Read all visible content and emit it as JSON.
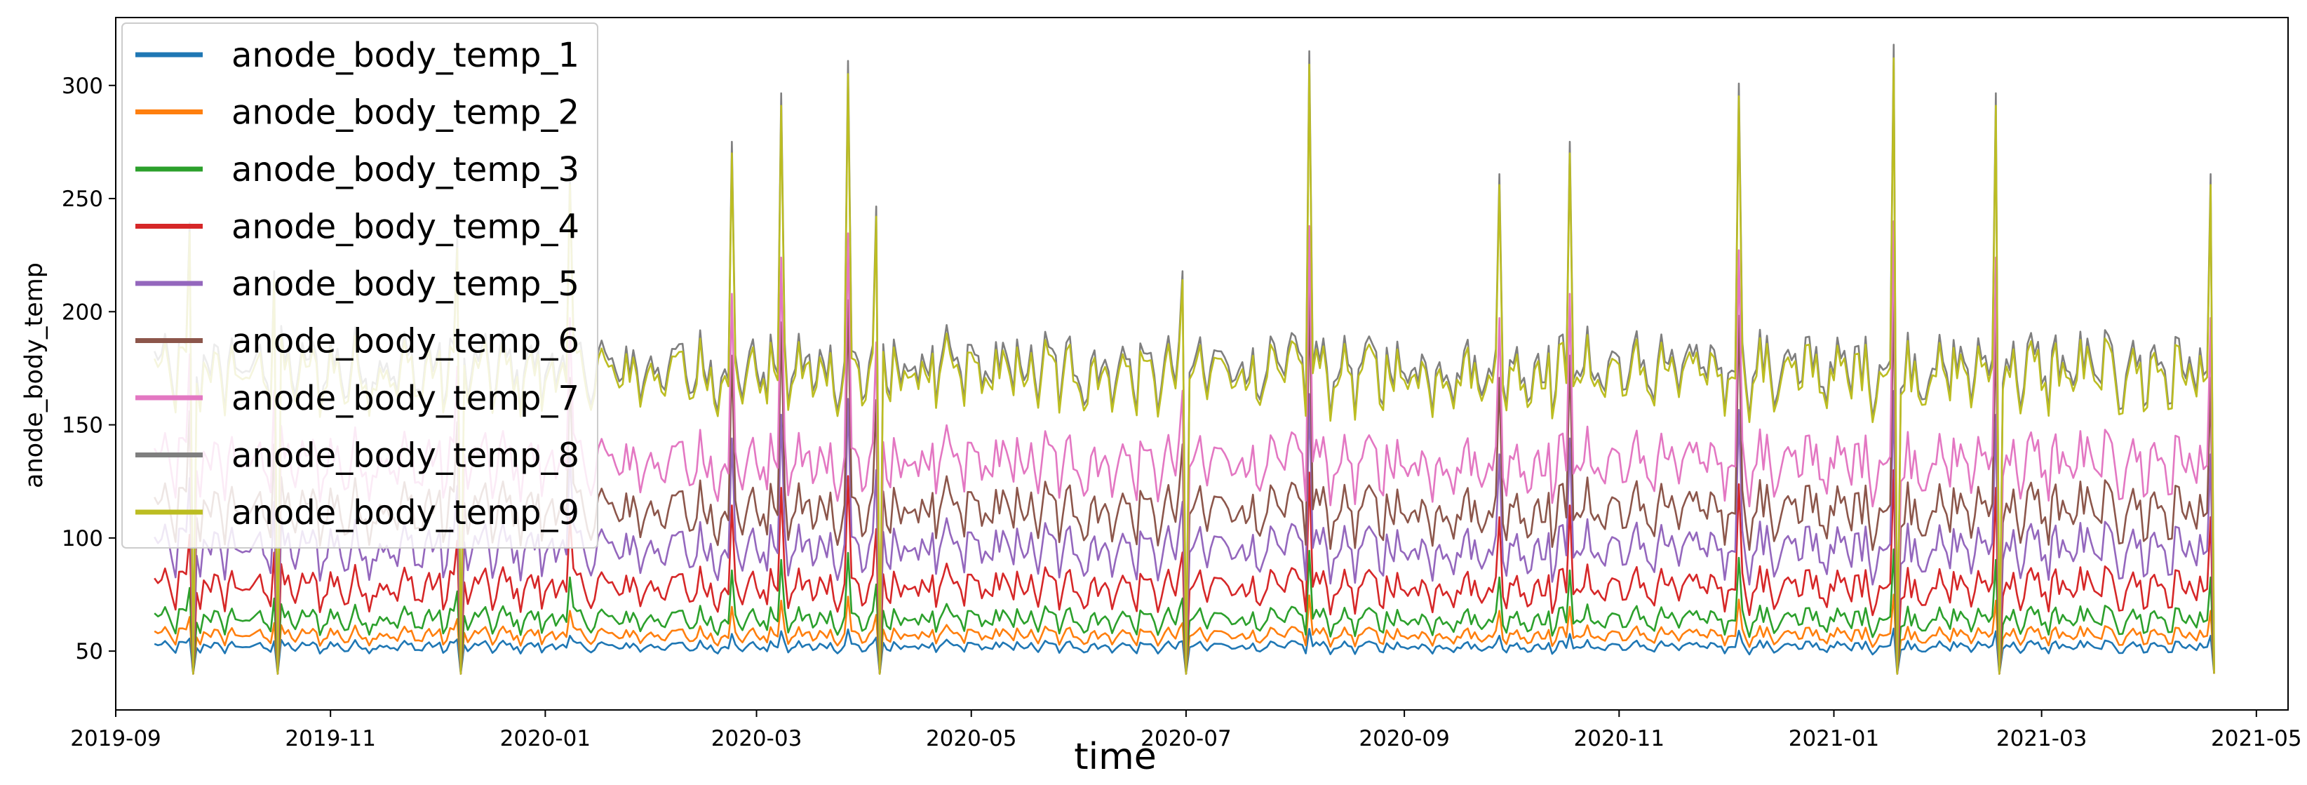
{
  "chart_data": {
    "type": "line",
    "title": "",
    "xlabel": "time",
    "ylabel": "anode_body_temp",
    "x_range": [
      "2019-09-01",
      "2021-05-10"
    ],
    "ylim": [
      24,
      330
    ],
    "y_ticks": [
      50,
      100,
      150,
      200,
      250,
      300
    ],
    "y_tick_labels": [
      "50",
      "100",
      "150",
      "200",
      "250",
      "300"
    ],
    "x_ticks": [
      "2019-09-01",
      "2019-11-01",
      "2020-01-01",
      "2020-03-01",
      "2020-05-01",
      "2020-07-01",
      "2020-09-01",
      "2020-11-01",
      "2021-01-01",
      "2021-03-01",
      "2021-05-01"
    ],
    "x_tick_labels": [
      "2019-09",
      "2019-11",
      "2020-01",
      "2020-03",
      "2020-05",
      "2020-07",
      "2020-09",
      "2020-11",
      "2021-01",
      "2021-03",
      "2021-05"
    ],
    "grid": false,
    "legend_position": "top-left",
    "series_start": "2019-09-12",
    "series_end": "2021-04-19",
    "series": [
      {
        "name": "anode_body_temp_1",
        "color": "#1f77b4",
        "baseline": 52,
        "variation": 4,
        "spike_peak": 60,
        "spike_low": 40
      },
      {
        "name": "anode_body_temp_2",
        "color": "#ff7f0e",
        "baseline": 57,
        "variation": 6,
        "spike_peak": 75,
        "spike_low": 40
      },
      {
        "name": "anode_body_temp_3",
        "color": "#2ca02c",
        "baseline": 64,
        "variation": 9,
        "spike_peak": 95,
        "spike_low": 40
      },
      {
        "name": "anode_body_temp_4",
        "color": "#d62728",
        "baseline": 78,
        "variation": 14,
        "spike_peak": 130,
        "spike_low": 40
      },
      {
        "name": "anode_body_temp_5",
        "color": "#9467bd",
        "baseline": 95,
        "variation": 18,
        "spike_peak": 165,
        "spike_low": 40
      },
      {
        "name": "anode_body_temp_6",
        "color": "#8c564b",
        "baseline": 112,
        "variation": 20,
        "spike_peak": 210,
        "spike_low": 40
      },
      {
        "name": "anode_body_temp_7",
        "color": "#e377c2",
        "baseline": 133,
        "variation": 22,
        "spike_peak": 240,
        "spike_low": 40
      },
      {
        "name": "anode_body_temp_8",
        "color": "#7f7f7f",
        "baseline": 175,
        "variation": 25,
        "spike_peak": 318,
        "spike_low": 42
      },
      {
        "name": "anode_body_temp_9",
        "color": "#bcbd22",
        "baseline": 172,
        "variation": 24,
        "spike_peak": 312,
        "spike_low": 40
      }
    ],
    "spike_events": [
      {
        "date": "2019-09-22",
        "high": 0.45,
        "low": true
      },
      {
        "date": "2019-10-16",
        "high": 0.3,
        "low": true
      },
      {
        "date": "2019-12-07",
        "high": 0.4,
        "low": true
      },
      {
        "date": "2020-01-08",
        "high": 0.6,
        "low": false
      },
      {
        "date": "2020-02-23",
        "high": 0.7,
        "low": false
      },
      {
        "date": "2020-03-08",
        "high": 0.85,
        "low": false
      },
      {
        "date": "2020-03-27",
        "high": 0.95,
        "low": false
      },
      {
        "date": "2020-04-04",
        "high": 0.5,
        "low": true
      },
      {
        "date": "2020-06-30",
        "high": 0.3,
        "low": true
      },
      {
        "date": "2020-08-05",
        "high": 0.98,
        "low": false
      },
      {
        "date": "2020-09-28",
        "high": 0.6,
        "low": false
      },
      {
        "date": "2020-10-18",
        "high": 0.7,
        "low": false
      },
      {
        "date": "2020-12-05",
        "high": 0.88,
        "low": false
      },
      {
        "date": "2021-01-18",
        "high": 1.0,
        "low": true
      },
      {
        "date": "2021-02-16",
        "high": 0.85,
        "low": true
      },
      {
        "date": "2021-04-18",
        "high": 0.6,
        "low": true
      }
    ]
  }
}
